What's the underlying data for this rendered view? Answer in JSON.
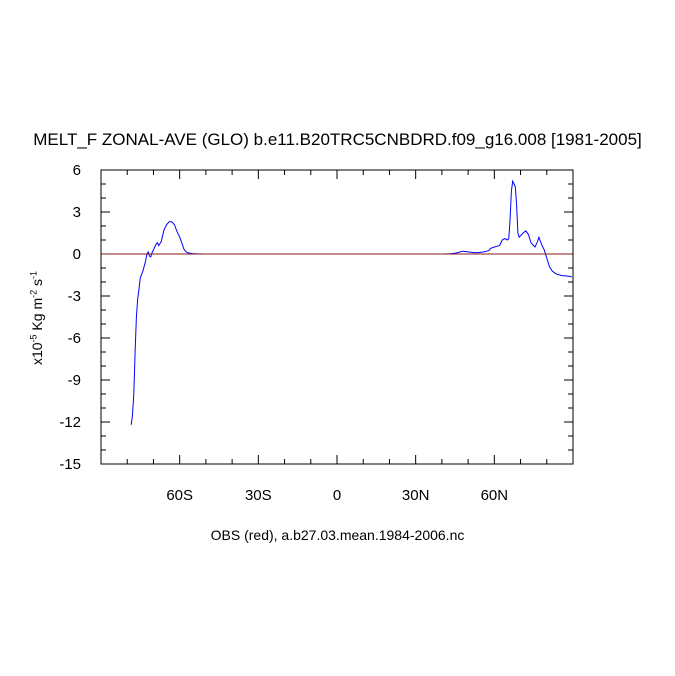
{
  "chart_data": {
    "type": "line",
    "title": "MELT_F ZONAL-AVE (GLO) b.e11.B20TRC5CNBDRD.f09_g16.008 [1981-2005]",
    "subtitle": "OBS (red), a.b27.03.mean.1984-2006.nc",
    "ylabel": {
      "prefix": "x10",
      "exp1": "-5",
      "mid": " Kg m",
      "exp2": "-2",
      "mid2": " s",
      "exp3": "-1"
    },
    "xlim": [
      -90,
      90
    ],
    "ylim": [
      -15,
      6
    ],
    "xticks": [
      {
        "value": -60,
        "label": "60S"
      },
      {
        "value": -30,
        "label": "30S"
      },
      {
        "value": 0,
        "label": "0"
      },
      {
        "value": 30,
        "label": "30N"
      },
      {
        "value": 60,
        "label": "60N"
      }
    ],
    "yticks": [
      {
        "value": 6,
        "label": "6"
      },
      {
        "value": 3,
        "label": "3"
      },
      {
        "value": 0,
        "label": "0"
      },
      {
        "value": -3,
        "label": "-3"
      },
      {
        "value": -6,
        "label": "-6"
      },
      {
        "value": -9,
        "label": "-9"
      },
      {
        "value": -12,
        "label": "-12"
      },
      {
        "value": -15,
        "label": "-15"
      }
    ],
    "grid": false,
    "series": [
      {
        "color": "#0000ff",
        "x": [
          -78.5,
          -78,
          -77.5,
          -77,
          -76.5,
          -76,
          -75.5,
          -75,
          -74,
          -73,
          -72.5,
          -72,
          -71.5,
          -71,
          -70.5,
          -70,
          -69.5,
          -69,
          -68.5,
          -68,
          -67,
          -66.5,
          -66,
          -65,
          -64,
          -63,
          -62,
          -61,
          -60,
          -59,
          -58.5,
          -58,
          -57.5,
          -57,
          -56,
          -55,
          -54,
          -53,
          -52,
          -51,
          -50,
          -45,
          -30,
          0,
          30,
          40,
          43,
          45,
          46,
          48,
          50,
          52,
          54,
          56,
          57,
          58,
          58.5,
          60,
          61,
          62,
          63,
          64,
          65,
          65.5,
          66,
          66.5,
          67,
          67.5,
          68,
          68.5,
          69,
          69.5,
          70,
          71,
          72,
          73,
          74,
          75,
          75.5,
          76,
          76.5,
          77,
          78,
          78.5,
          79,
          80,
          81,
          82,
          83,
          84,
          85,
          86,
          87,
          88,
          89,
          89.5
        ],
        "y": [
          -12.2,
          -11.5,
          -10,
          -7,
          -4.5,
          -3.2,
          -2.5,
          -1.7,
          -1.2,
          -0.5,
          0,
          0.15,
          -0.15,
          -0.2,
          0.1,
          0.3,
          0.5,
          0.7,
          0.8,
          0.6,
          0.9,
          1.3,
          1.7,
          2.1,
          2.3,
          2.3,
          2.1,
          1.6,
          1.2,
          0.7,
          0.4,
          0.25,
          0.15,
          0.1,
          0.05,
          0.03,
          0.02,
          0.01,
          0.01,
          0,
          0,
          0,
          0,
          0,
          0,
          0,
          0.02,
          0.05,
          0.1,
          0.2,
          0.15,
          0.1,
          0.1,
          0.15,
          0.2,
          0.25,
          0.4,
          0.5,
          0.55,
          0.6,
          1.0,
          1.1,
          1.0,
          1.1,
          2.5,
          4.5,
          5.2,
          5.0,
          4.8,
          3.5,
          1.5,
          1.2,
          1.3,
          1.5,
          1.65,
          1.4,
          0.8,
          0.6,
          0.5,
          0.7,
          0.9,
          1.2,
          0.7,
          0.5,
          0.3,
          -0.3,
          -0.9,
          -1.2,
          -1.35,
          -1.45,
          -1.5,
          -1.55,
          -1.55,
          -1.58,
          -1.6,
          -1.65
        ]
      },
      {
        "color": "#8b1a1a",
        "x": [
          -90,
          90
        ],
        "y": [
          0,
          0
        ]
      }
    ]
  }
}
